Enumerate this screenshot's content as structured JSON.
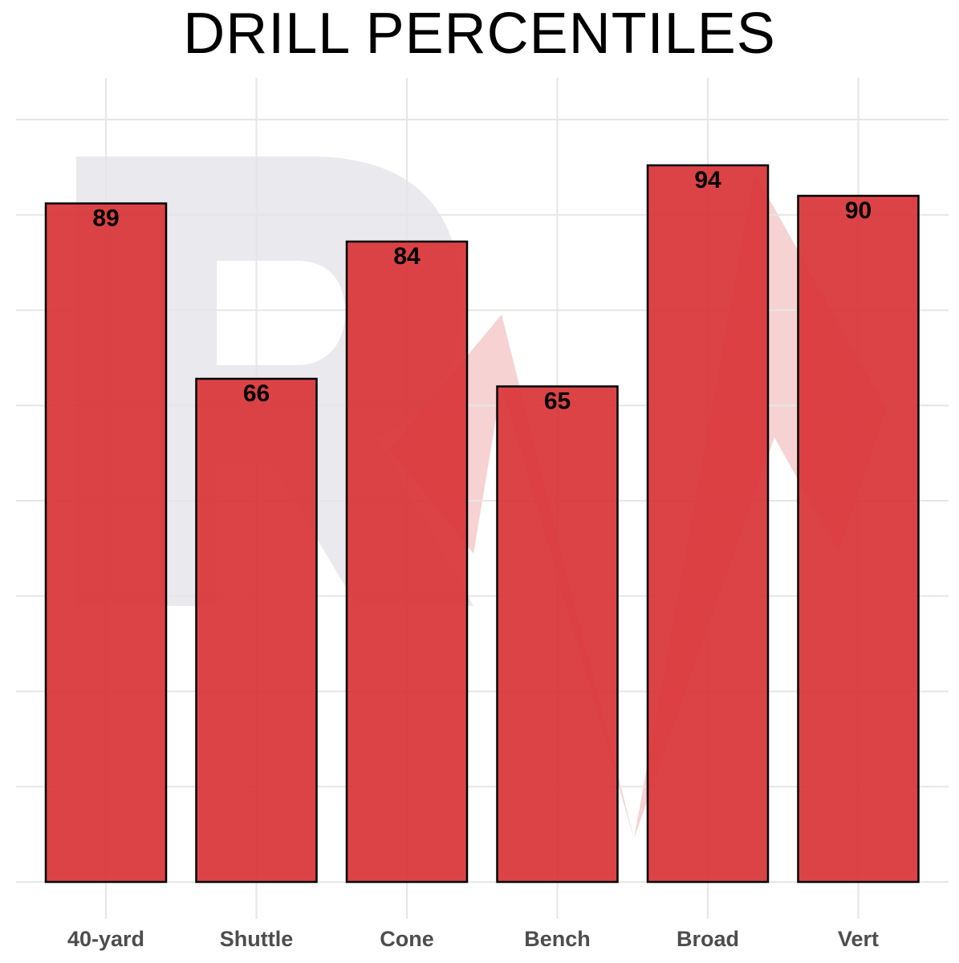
{
  "chart_data": {
    "type": "bar",
    "title": "DRILL PERCENTILES",
    "categories": [
      "40-yard",
      "Shuttle",
      "Cone",
      "Bench",
      "Broad",
      "Vert"
    ],
    "values": [
      89,
      66,
      84,
      65,
      94,
      90
    ],
    "data_labels": [
      "89",
      "66",
      "84",
      "65",
      "94",
      "90"
    ],
    "xlabel": "",
    "ylabel": "",
    "ylim": [
      0,
      105
    ],
    "y_ticks_shown": false,
    "grid": true,
    "legend": "none",
    "colors": {
      "bar_fill": "#d93336",
      "bar_stroke": "#000000",
      "grid": "#e6e6e6",
      "watermark_gray": "#e9e9ee",
      "watermark_red": "#f6d2d2",
      "tick_label": "#4d4d4d"
    }
  }
}
